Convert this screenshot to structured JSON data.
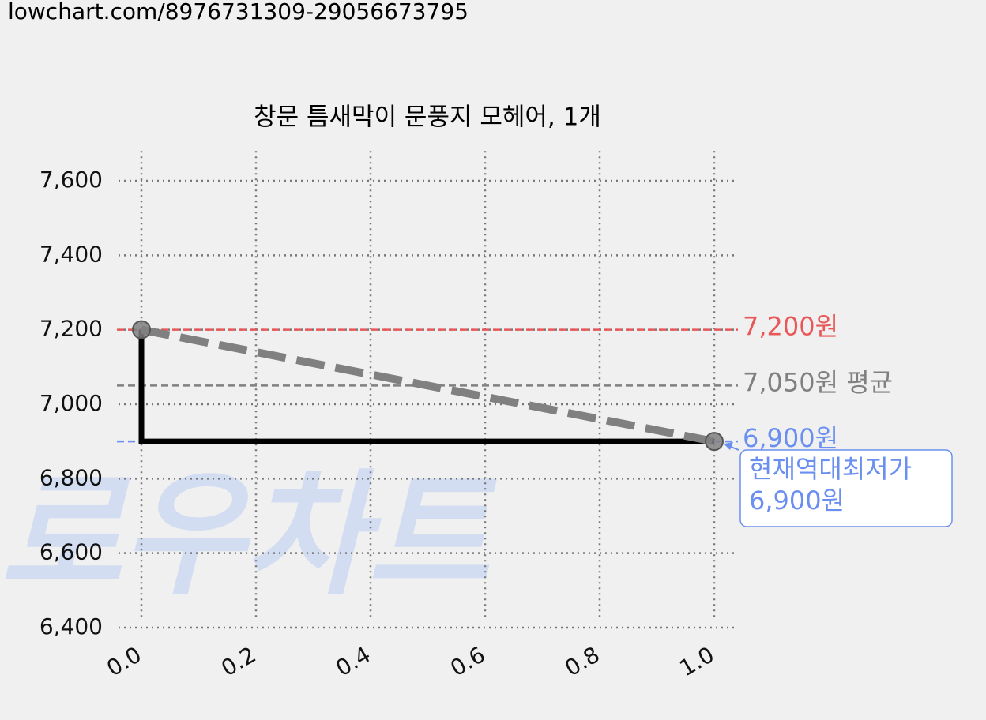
{
  "header": {
    "url": "lowchart.com/8976731309-29056673795"
  },
  "chart_data": {
    "type": "line",
    "title": "창문 틈새막이 문풍지 모헤어, 1개",
    "watermark": "로우차트",
    "x": [
      0,
      1
    ],
    "series": [
      {
        "color": "#000000",
        "trend_color": "#808080",
        "step": "pre",
        "values": [
          7200,
          6900
        ]
      }
    ],
    "xlim": [
      -0.04,
      1.04
    ],
    "ylim": [
      6400,
      7680
    ],
    "xticks": [
      {
        "value": 0,
        "label": "0.0"
      },
      {
        "value": 0.2,
        "label": "0.2"
      },
      {
        "value": 0.4,
        "label": "0.4"
      },
      {
        "value": 0.6,
        "label": "0.6"
      },
      {
        "value": 0.8,
        "label": "0.8"
      },
      {
        "value": 1,
        "label": "1.0"
      }
    ],
    "yticks": [
      {
        "value": 6400,
        "label": "6,400"
      },
      {
        "value": 6600,
        "label": "6,600"
      },
      {
        "value": 6800,
        "label": "6,800"
      },
      {
        "value": 7000,
        "label": "7,000"
      },
      {
        "value": 7200,
        "label": "7,200"
      },
      {
        "value": 7400,
        "label": "7,400"
      },
      {
        "value": 7600,
        "label": "7,600"
      }
    ],
    "grid": true,
    "hlines": [
      {
        "value": 7200,
        "label": "7,200원",
        "color": "#e85858"
      },
      {
        "value": 7050,
        "label": "7,050원 평균",
        "color": "#808080"
      },
      {
        "value": 6900,
        "label": "6,900원",
        "color": "#6a8ff0"
      }
    ],
    "annotation": {
      "x": 1,
      "value": 6900,
      "lines": [
        "현재역대최저가",
        "6,900원"
      ],
      "color": "#6a8ff0"
    }
  }
}
